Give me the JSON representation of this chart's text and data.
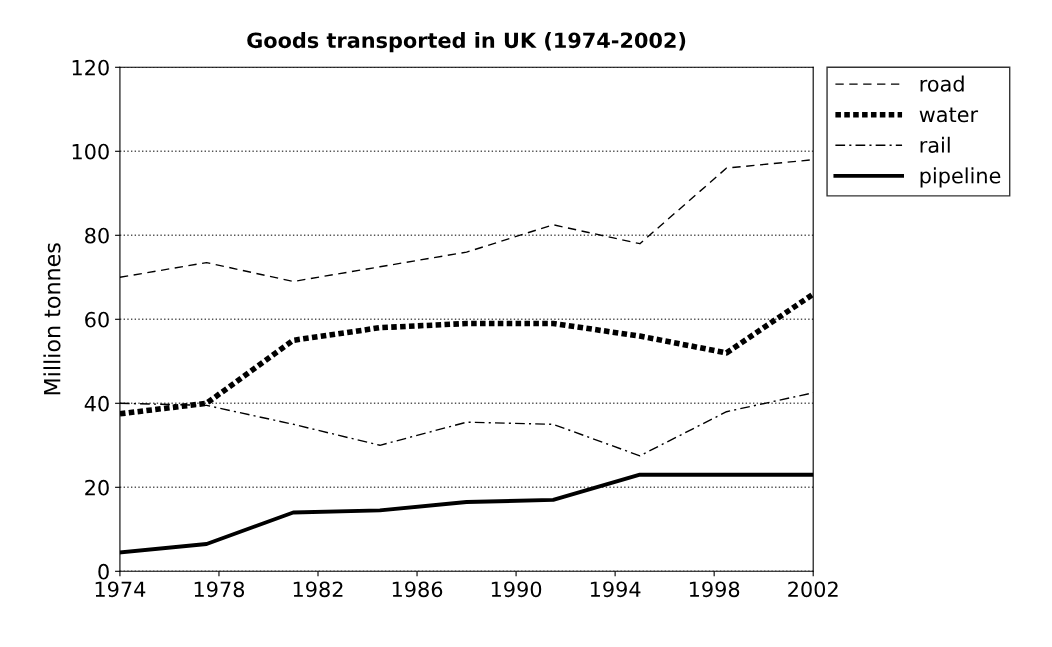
{
  "chart_data": {
    "type": "line",
    "title": "Goods transported in UK (1974-2002)",
    "ylabel": "Million tonnes",
    "x": [
      1974,
      1977.5,
      1981,
      1984.5,
      1988,
      1991.5,
      1995,
      1998.5,
      2002
    ],
    "series": [
      {
        "name": "road",
        "color": "#000000",
        "line_style": "dashed",
        "values": [
          70,
          73.5,
          69,
          72.5,
          76,
          82.5,
          78,
          96,
          98
        ]
      },
      {
        "name": "water",
        "color": "#000000",
        "line_style": "dotted",
        "values": [
          37.5,
          40,
          55,
          58,
          59,
          59,
          56,
          52,
          66
        ]
      },
      {
        "name": "rail",
        "color": "#000000",
        "line_style": "dashdot",
        "values": [
          40,
          39.5,
          35,
          30,
          35.5,
          35,
          27.5,
          38,
          42.5
        ]
      },
      {
        "name": "pipeline",
        "color": "#000000",
        "line_style": "solid",
        "values": [
          4.5,
          6.5,
          14,
          14.5,
          16.5,
          17,
          23,
          23,
          23
        ]
      }
    ],
    "xlim": [
      1974,
      2002
    ],
    "xticks": [
      1974,
      1978,
      1982,
      1986,
      1990,
      1994,
      1998,
      2002
    ],
    "ylim": [
      0,
      120
    ],
    "yticks": [
      0,
      20,
      40,
      60,
      80,
      100,
      120
    ],
    "grid": "y",
    "legend": "top right",
    "marker": "none"
  }
}
